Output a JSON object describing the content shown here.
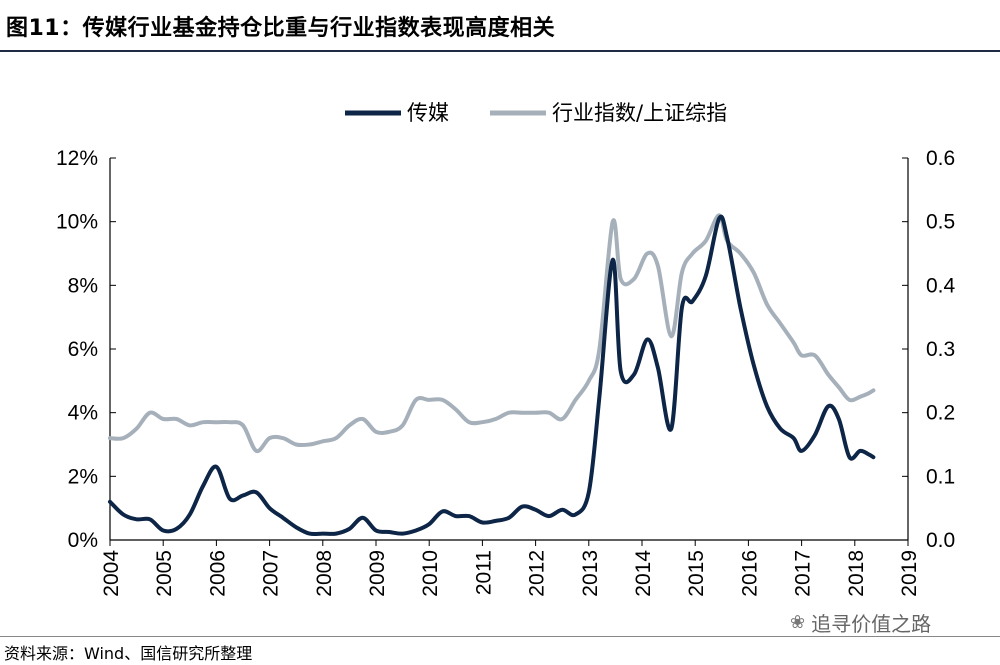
{
  "title": "图11：传媒行业基金持仓比重与行业指数表现高度相关",
  "source": "资料来源：Wind、国信研究所整理",
  "watermark": "追寻价值之路",
  "colors": {
    "media": "#0d2546",
    "index": "#a6b0ba"
  },
  "chart_data": {
    "type": "line",
    "x_ticks": [
      "2004",
      "2005",
      "2006",
      "2007",
      "2008",
      "2009",
      "2010",
      "2011",
      "2012",
      "2013",
      "2014",
      "2015",
      "2016",
      "2017",
      "2018",
      "2019"
    ],
    "left_axis": {
      "ticks": [
        "0%",
        "2%",
        "4%",
        "6%",
        "8%",
        "10%",
        "12%"
      ],
      "ylim": [
        0,
        12
      ]
    },
    "right_axis": {
      "ticks": [
        "0.0",
        "0.1",
        "0.2",
        "0.3",
        "0.4",
        "0.5",
        "0.6"
      ],
      "ylim": [
        0,
        0.6
      ]
    },
    "xlim": [
      2004,
      2019
    ],
    "legend": {
      "placement": "top-center"
    },
    "series": [
      {
        "name": "传媒",
        "axis": "left",
        "points": [
          [
            2004.0,
            1.2
          ],
          [
            2004.25,
            0.8
          ],
          [
            2004.5,
            0.65
          ],
          [
            2004.75,
            0.65
          ],
          [
            2005.0,
            0.3
          ],
          [
            2005.25,
            0.35
          ],
          [
            2005.5,
            0.8
          ],
          [
            2005.75,
            1.7
          ],
          [
            2006.0,
            2.3
          ],
          [
            2006.25,
            1.3
          ],
          [
            2006.5,
            1.4
          ],
          [
            2006.75,
            1.5
          ],
          [
            2007.0,
            1.0
          ],
          [
            2007.25,
            0.7
          ],
          [
            2007.5,
            0.4
          ],
          [
            2007.75,
            0.2
          ],
          [
            2008.0,
            0.2
          ],
          [
            2008.25,
            0.2
          ],
          [
            2008.5,
            0.35
          ],
          [
            2008.75,
            0.7
          ],
          [
            2009.0,
            0.3
          ],
          [
            2009.25,
            0.25
          ],
          [
            2009.5,
            0.2
          ],
          [
            2009.75,
            0.3
          ],
          [
            2010.0,
            0.5
          ],
          [
            2010.25,
            0.9
          ],
          [
            2010.5,
            0.75
          ],
          [
            2010.75,
            0.75
          ],
          [
            2011.0,
            0.55
          ],
          [
            2011.25,
            0.6
          ],
          [
            2011.5,
            0.7
          ],
          [
            2011.75,
            1.05
          ],
          [
            2012.0,
            0.95
          ],
          [
            2012.25,
            0.75
          ],
          [
            2012.5,
            0.95
          ],
          [
            2012.75,
            0.8
          ],
          [
            2013.0,
            1.5
          ],
          [
            2013.2,
            4.5
          ],
          [
            2013.45,
            8.8
          ],
          [
            2013.6,
            5.3
          ],
          [
            2013.85,
            5.2
          ],
          [
            2014.1,
            6.3
          ],
          [
            2014.3,
            5.4
          ],
          [
            2014.55,
            3.5
          ],
          [
            2014.75,
            7.3
          ],
          [
            2014.95,
            7.5
          ],
          [
            2015.2,
            8.3
          ],
          [
            2015.45,
            10.1
          ],
          [
            2015.6,
            9.5
          ],
          [
            2015.85,
            7.3
          ],
          [
            2016.1,
            5.5
          ],
          [
            2016.35,
            4.2
          ],
          [
            2016.6,
            3.5
          ],
          [
            2016.85,
            3.2
          ],
          [
            2017.0,
            2.8
          ],
          [
            2017.25,
            3.3
          ],
          [
            2017.5,
            4.2
          ],
          [
            2017.7,
            3.8
          ],
          [
            2017.9,
            2.6
          ],
          [
            2018.1,
            2.8
          ],
          [
            2018.25,
            2.7
          ],
          [
            2018.35,
            2.6
          ]
        ]
      },
      {
        "name": "行业指数/上证综指",
        "axis": "right",
        "points": [
          [
            2004.0,
            0.16
          ],
          [
            2004.25,
            0.16
          ],
          [
            2004.5,
            0.175
          ],
          [
            2004.75,
            0.2
          ],
          [
            2005.0,
            0.19
          ],
          [
            2005.25,
            0.19
          ],
          [
            2005.5,
            0.18
          ],
          [
            2005.75,
            0.185
          ],
          [
            2006.0,
            0.185
          ],
          [
            2006.25,
            0.185
          ],
          [
            2006.5,
            0.18
          ],
          [
            2006.75,
            0.14
          ],
          [
            2007.0,
            0.16
          ],
          [
            2007.25,
            0.16
          ],
          [
            2007.5,
            0.15
          ],
          [
            2007.75,
            0.15
          ],
          [
            2008.0,
            0.155
          ],
          [
            2008.25,
            0.16
          ],
          [
            2008.5,
            0.18
          ],
          [
            2008.75,
            0.19
          ],
          [
            2009.0,
            0.17
          ],
          [
            2009.25,
            0.17
          ],
          [
            2009.5,
            0.18
          ],
          [
            2009.75,
            0.22
          ],
          [
            2010.0,
            0.22
          ],
          [
            2010.25,
            0.22
          ],
          [
            2010.5,
            0.205
          ],
          [
            2010.75,
            0.185
          ],
          [
            2011.0,
            0.185
          ],
          [
            2011.25,
            0.19
          ],
          [
            2011.5,
            0.2
          ],
          [
            2011.75,
            0.2
          ],
          [
            2012.0,
            0.2
          ],
          [
            2012.25,
            0.2
          ],
          [
            2012.5,
            0.19
          ],
          [
            2012.75,
            0.22
          ],
          [
            2013.0,
            0.25
          ],
          [
            2013.2,
            0.3
          ],
          [
            2013.45,
            0.5
          ],
          [
            2013.6,
            0.41
          ],
          [
            2013.85,
            0.41
          ],
          [
            2014.1,
            0.45
          ],
          [
            2014.3,
            0.43
          ],
          [
            2014.55,
            0.32
          ],
          [
            2014.75,
            0.42
          ],
          [
            2014.95,
            0.45
          ],
          [
            2015.2,
            0.47
          ],
          [
            2015.45,
            0.51
          ],
          [
            2015.6,
            0.47
          ],
          [
            2015.85,
            0.45
          ],
          [
            2016.1,
            0.42
          ],
          [
            2016.35,
            0.37
          ],
          [
            2016.6,
            0.34
          ],
          [
            2016.85,
            0.31
          ],
          [
            2017.0,
            0.29
          ],
          [
            2017.25,
            0.29
          ],
          [
            2017.5,
            0.26
          ],
          [
            2017.7,
            0.24
          ],
          [
            2017.9,
            0.22
          ],
          [
            2018.1,
            0.225
          ],
          [
            2018.25,
            0.23
          ],
          [
            2018.35,
            0.235
          ]
        ]
      }
    ]
  }
}
